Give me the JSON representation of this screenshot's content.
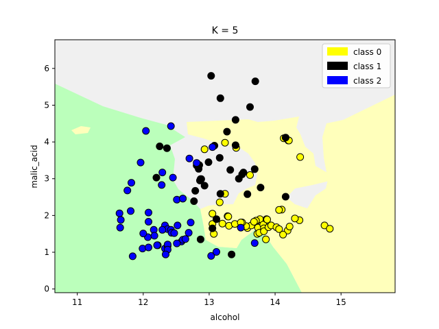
{
  "chart_data": {
    "type": "scatter",
    "title": "K = 5",
    "xlabel": "alcohol",
    "ylabel": "malic_acid",
    "xlim": [
      10.66,
      15.82
    ],
    "ylim": [
      -0.1,
      6.78
    ],
    "xticks": [
      11,
      12,
      13,
      14,
      15
    ],
    "yticks": [
      0,
      1,
      2,
      3,
      4,
      5,
      6
    ],
    "grid": false,
    "legend_position": "top-right",
    "background_regions": {
      "class 0": "#ffffbb",
      "class 1": "#f0f0f0",
      "class 2": "#bbffbb"
    },
    "series": [
      {
        "name": "class 0",
        "color": "#ffff00",
        "points": [
          [
            12.93,
            3.8
          ],
          [
            13.24,
            3.98
          ],
          [
            13.41,
            3.84
          ],
          [
            13.62,
            3.1
          ],
          [
            14.38,
            3.59
          ],
          [
            14.2,
            4.04
          ],
          [
            14.19,
            1.59
          ],
          [
            14.22,
            1.7
          ],
          [
            14.37,
            1.87
          ],
          [
            14.75,
            1.73
          ],
          [
            14.83,
            1.64
          ],
          [
            14.1,
            2.16
          ],
          [
            13.2,
            1.78
          ],
          [
            13.16,
            2.36
          ],
          [
            13.24,
            2.59
          ],
          [
            13.28,
            1.98
          ],
          [
            13.05,
            1.77
          ],
          [
            13.05,
            2.05
          ],
          [
            13.3,
            1.72
          ],
          [
            13.39,
            1.77
          ],
          [
            13.52,
            1.73
          ],
          [
            13.58,
            1.66
          ],
          [
            13.64,
            1.73
          ],
          [
            13.72,
            1.85
          ],
          [
            13.73,
            1.5
          ],
          [
            13.74,
            1.67
          ],
          [
            13.76,
            1.53
          ],
          [
            13.77,
            1.9
          ],
          [
            13.82,
            1.75
          ],
          [
            13.83,
            1.65
          ],
          [
            13.83,
            1.57
          ],
          [
            13.86,
            1.35
          ],
          [
            13.87,
            1.9
          ],
          [
            13.88,
            1.89
          ],
          [
            13.9,
            1.68
          ],
          [
            13.94,
            1.73
          ],
          [
            14.02,
            1.68
          ],
          [
            14.06,
            1.63
          ],
          [
            14.06,
            2.15
          ],
          [
            14.12,
            1.48
          ],
          [
            14.21,
            4.04
          ],
          [
            14.13,
            4.1
          ],
          [
            13.71,
            1.86
          ],
          [
            13.68,
            1.83
          ],
          [
            13.56,
            1.71
          ],
          [
            13.5,
            1.81
          ],
          [
            13.48,
            1.81
          ],
          [
            13.29,
            1.97
          ],
          [
            13.07,
            1.5
          ],
          [
            14.3,
            1.92
          ]
        ]
      },
      {
        "name": "class 1",
        "color": "#000000",
        "points": [
          [
            13.03,
            5.8
          ],
          [
            13.7,
            5.65
          ],
          [
            13.17,
            5.19
          ],
          [
            13.62,
            4.95
          ],
          [
            13.4,
            4.6
          ],
          [
            13.27,
            4.28
          ],
          [
            14.16,
            4.12
          ],
          [
            12.25,
            3.88
          ],
          [
            12.36,
            3.83
          ],
          [
            13.16,
            3.57
          ],
          [
            13.69,
            3.26
          ],
          [
            13.32,
            3.24
          ],
          [
            12.84,
            3.27
          ],
          [
            12.85,
            3.37
          ],
          [
            12.99,
            3.45
          ],
          [
            12.81,
            3.36
          ],
          [
            13.52,
            3.17
          ],
          [
            13.5,
            3.12
          ],
          [
            12.87,
            2.99
          ],
          [
            12.93,
            2.81
          ],
          [
            12.86,
            2.95
          ],
          [
            13.78,
            2.76
          ],
          [
            13.17,
            2.59
          ],
          [
            14.16,
            2.51
          ],
          [
            12.6,
            2.46
          ],
          [
            12.77,
            2.39
          ],
          [
            13.11,
            1.9
          ],
          [
            12.87,
            1.35
          ],
          [
            13.34,
            0.94
          ],
          [
            13.45,
            3.0
          ],
          [
            13.58,
            2.58
          ],
          [
            13.4,
            3.91
          ],
          [
            12.2,
            3.03
          ],
          [
            12.88,
            2.99
          ],
          [
            13.08,
            3.9
          ],
          [
            12.79,
            2.67
          ],
          [
            13.05,
            1.65
          ]
        ]
      },
      {
        "name": "class 2",
        "color": "#0000ff",
        "points": [
          [
            13.03,
            0.9
          ],
          [
            12.04,
            4.3
          ],
          [
            11.96,
            3.44
          ],
          [
            12.29,
            3.17
          ],
          [
            12.28,
            2.83
          ],
          [
            12.81,
            3.43
          ],
          [
            13.05,
            3.86
          ],
          [
            11.82,
            2.89
          ],
          [
            11.76,
            2.68
          ],
          [
            12.45,
            3.03
          ],
          [
            12.51,
            2.43
          ],
          [
            12.6,
            2.46
          ],
          [
            11.64,
            2.06
          ],
          [
            12.08,
            2.08
          ],
          [
            11.65,
            1.67
          ],
          [
            12.08,
            1.83
          ],
          [
            12.16,
            1.61
          ],
          [
            12.33,
            1.73
          ],
          [
            12.37,
            1.63
          ],
          [
            12.42,
            1.61
          ],
          [
            12.43,
            1.53
          ],
          [
            12.52,
            1.73
          ],
          [
            12.69,
            1.53
          ],
          [
            12.58,
            1.29
          ],
          [
            12.6,
            1.34
          ],
          [
            12.07,
            1.41
          ],
          [
            12.0,
            1.51
          ],
          [
            12.22,
            1.19
          ],
          [
            11.84,
            0.89
          ],
          [
            11.99,
            1.1
          ],
          [
            12.08,
            1.13
          ],
          [
            12.33,
            1.1
          ],
          [
            12.37,
            1.17
          ],
          [
            12.37,
            1.21
          ],
          [
            12.37,
            1.07
          ],
          [
            12.34,
            0.94
          ],
          [
            13.48,
            1.67
          ],
          [
            13.69,
            1.25
          ],
          [
            12.29,
            1.61
          ],
          [
            12.64,
            1.36
          ],
          [
            12.17,
            1.45
          ],
          [
            12.72,
            1.81
          ],
          [
            12.47,
            1.52
          ],
          [
            11.81,
            2.12
          ],
          [
            12.42,
            4.43
          ],
          [
            11.66,
            1.88
          ],
          [
            12.7,
            3.55
          ],
          [
            12.21,
            1.19
          ],
          [
            13.11,
            1.01
          ],
          [
            12.51,
            1.24
          ]
        ]
      }
    ]
  }
}
